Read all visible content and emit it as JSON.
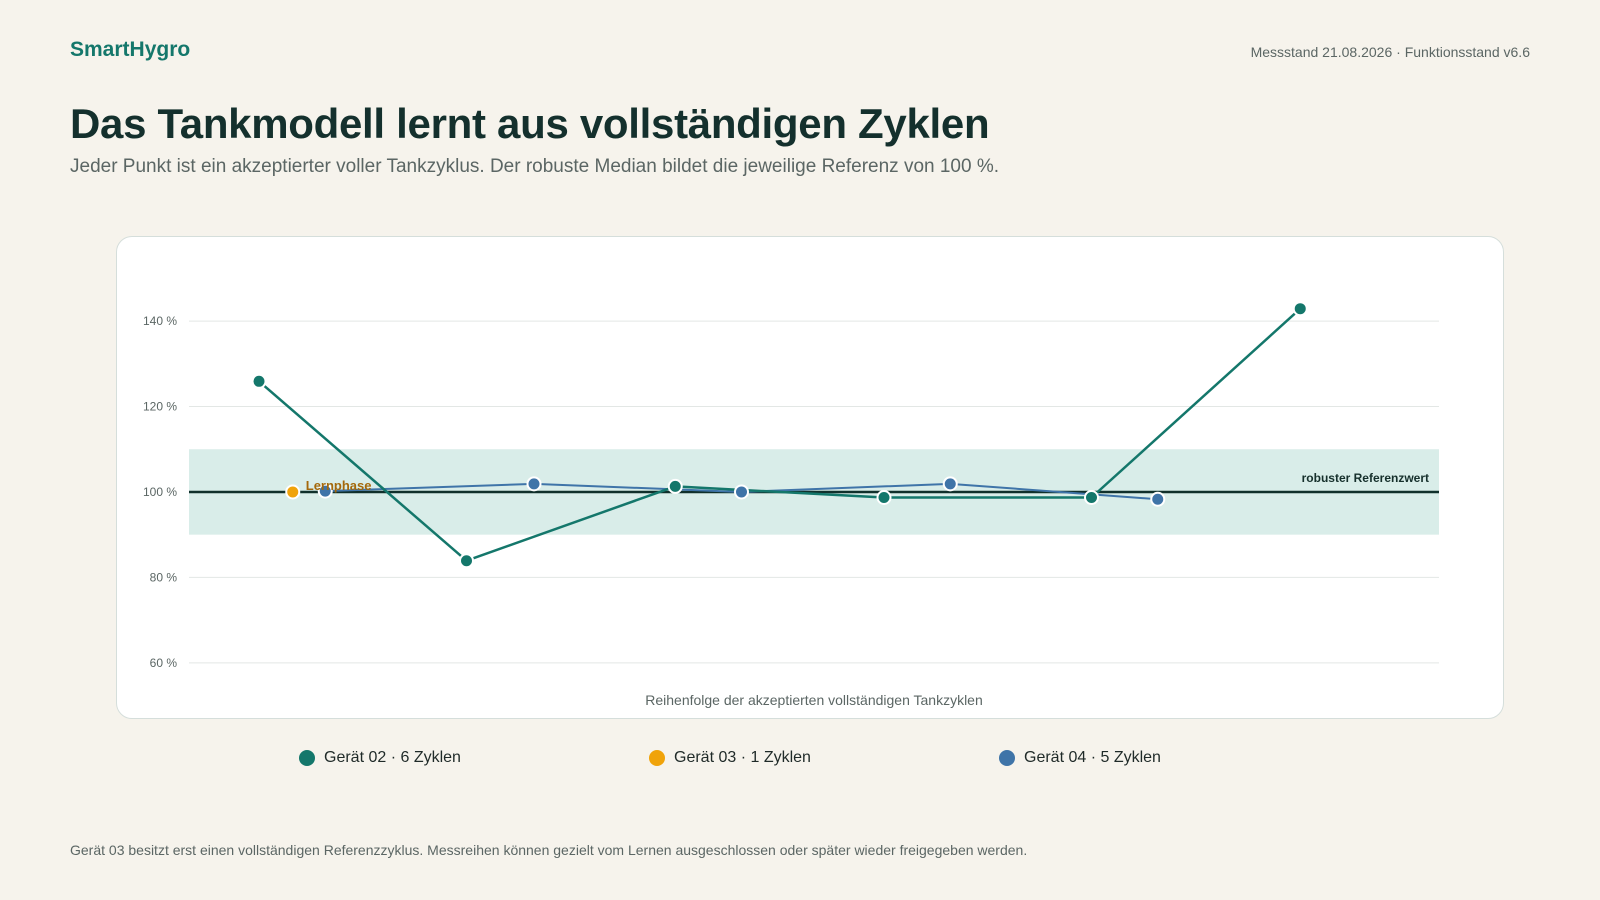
{
  "header": {
    "brand": "SmartHygro",
    "status": "Messstand 21.08.2026 · Funktionsstand v6.6"
  },
  "title": "Das Tankmodell lernt aus vollständigen Zyklen",
  "subtitle": "Jeder Punkt ist ein akzeptierter voller Tankzyklus. Der robuste Median bildet die jeweilige Referenz von 100 %.",
  "footnote": "Gerät 03 besitzt erst einen vollständigen Referenzzyklus. Messreihen können gezielt vom Lernen ausgeschlossen oder später wieder freigegeben werden.",
  "legend": [
    {
      "label": "Gerät 02 · 6 Zyklen",
      "color": "#14776b"
    },
    {
      "label": "Gerät 03 · 1 Zyklen",
      "color": "#f0a30a"
    },
    {
      "label": "Gerät 04 · 5 Zyklen",
      "color": "#3f74a8"
    }
  ],
  "chart_data": {
    "type": "line",
    "title": "",
    "xlabel": "Reihenfolge der akzeptierten vollständigen Tankzyklen",
    "ylabel": "",
    "ylim": [
      52,
      155
    ],
    "yticks": [
      60,
      80,
      100,
      120,
      140
    ],
    "ytick_labels": [
      "60 %",
      "80 %",
      "100 %",
      "120 %",
      "140 %"
    ],
    "grid": true,
    "x_domain": [
      0,
      1
    ],
    "band": [
      90,
      110
    ],
    "reference": {
      "value": 100,
      "label": "robuster Referenzwert"
    },
    "series": [
      {
        "name": "Gerät 02 · 6 Zyklen",
        "color": "#14776b",
        "x": [
          0.056,
          0.222,
          0.389,
          0.556,
          0.722,
          0.889
        ],
        "y": [
          125.9,
          83.9,
          101.3,
          98.7,
          98.7,
          142.9
        ]
      },
      {
        "name": "Gerät 03 · 1 Zyklen",
        "color": "#f0a30a",
        "x": [
          0.083
        ],
        "y": [
          100
        ],
        "annotation": "Lernphase"
      },
      {
        "name": "Gerät 04 · 5 Zyklen",
        "color": "#3f74a8",
        "x": [
          0.109,
          0.276,
          0.442,
          0.609,
          0.775
        ],
        "y": [
          100.2,
          101.9,
          100.0,
          101.9,
          98.3
        ]
      }
    ]
  }
}
